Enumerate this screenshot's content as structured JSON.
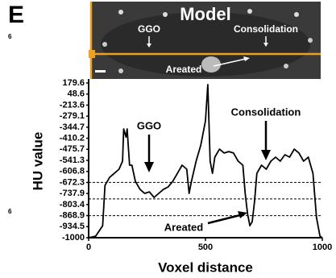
{
  "panel_label": "E",
  "edge_fragments": [
    "6",
    "6"
  ],
  "image": {
    "title": "Model",
    "labels": [
      "GGO",
      "Consolidation",
      "Areated"
    ]
  },
  "chart_data": {
    "type": "line",
    "ylabel": "HU value",
    "xlabel": "Voxel distance",
    "xlim": [
      0,
      1000
    ],
    "xticks": [
      0,
      500,
      1000
    ],
    "ylim": [
      -1000,
      179.6
    ],
    "yticks": [
      179.6,
      48.6,
      -213.6,
      -279.1,
      -344.7,
      -410.2,
      -475.7,
      -541.3,
      -606.8,
      -672.3,
      -737.9,
      -803.4,
      -868.9,
      -934.5,
      -1000
    ],
    "reference_lines": [
      -672.3,
      -770,
      -868.9
    ],
    "annotations": [
      "GGO",
      "Consolidation",
      "Areated"
    ],
    "series": [
      {
        "color": "#000000",
        "x": [
          0,
          30,
          60,
          70,
          90,
          110,
          130,
          145,
          150,
          160,
          165,
          175,
          185,
          200,
          220,
          240,
          260,
          280,
          300,
          320,
          340,
          360,
          380,
          400,
          420,
          430,
          440,
          460,
          480,
          500,
          510,
          520,
          530,
          540,
          560,
          580,
          600,
          620,
          640,
          660,
          670,
          680,
          690,
          700,
          710,
          720,
          740,
          760,
          780,
          800,
          820,
          840,
          860,
          880,
          900,
          920,
          940,
          960,
          975,
          990,
          1000
        ],
        "values": [
          -1000,
          -991,
          -929,
          -690,
          -642,
          -618,
          -594,
          -546,
          -355,
          -403,
          -355,
          -570,
          -570,
          -666,
          -714,
          -737,
          -728,
          -761,
          -737,
          -714,
          -699,
          -666,
          -618,
          -570,
          -594,
          -737,
          -666,
          -546,
          -451,
          -307,
          160.5,
          -546,
          -618,
          -522,
          -475,
          -498,
          -489,
          -498,
          -546,
          -570,
          -737,
          -857,
          -929,
          -905,
          -785,
          -618,
          -570,
          -594,
          -546,
          -522,
          -546,
          -508,
          -522,
          -475,
          -498,
          -546,
          -522,
          -618,
          -881,
          -991,
          -1000
        ]
      }
    ]
  }
}
